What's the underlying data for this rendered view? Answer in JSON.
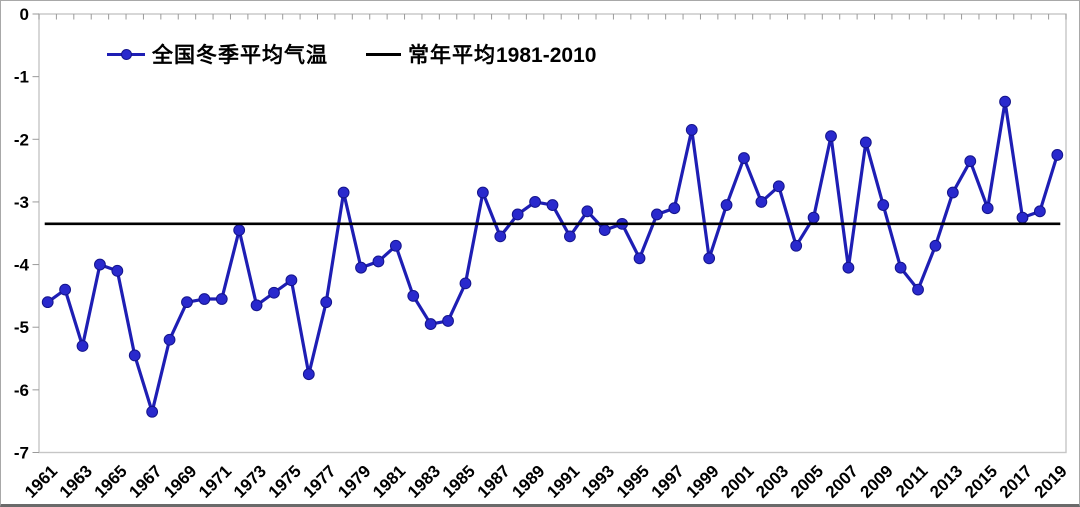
{
  "figure": {
    "background": "#ffffff",
    "frame_border_color": "#a8a8a8",
    "plot_border_color": "#c6c6c6",
    "tick_color": "#9a9a9a",
    "label_color": "#000000"
  },
  "legend": {
    "series1_label": "全国冬季平均气温",
    "series2_prefix": "常年平均",
    "series2_range": "1981-2010",
    "series1_line_color": "#1e1eb4",
    "series1_marker_color": "#2929cd",
    "series2_color": "#000000"
  },
  "chart_data": {
    "type": "line",
    "title": "",
    "xlabel": "",
    "ylabel": "",
    "grid": false,
    "legend_position": "top-inside",
    "ylim": [
      -7,
      0
    ],
    "yticks": [
      0,
      -1,
      -2,
      -3,
      -4,
      -5,
      -6,
      -7
    ],
    "x": [
      1961,
      1962,
      1963,
      1964,
      1965,
      1966,
      1967,
      1968,
      1969,
      1970,
      1971,
      1972,
      1973,
      1974,
      1975,
      1976,
      1977,
      1978,
      1979,
      1980,
      1981,
      1982,
      1983,
      1984,
      1985,
      1986,
      1987,
      1988,
      1989,
      1990,
      1991,
      1992,
      1993,
      1994,
      1995,
      1996,
      1997,
      1998,
      1999,
      2000,
      2001,
      2002,
      2003,
      2004,
      2005,
      2006,
      2007,
      2008,
      2009,
      2010,
      2011,
      2012,
      2013,
      2014,
      2015,
      2016,
      2017,
      2018,
      2019
    ],
    "xtick_labels": [
      "1961",
      "1963",
      "1965",
      "1967",
      "1969",
      "1971",
      "1973",
      "1975",
      "1977",
      "1979",
      "1981",
      "1983",
      "1985",
      "1987",
      "1989",
      "1991",
      "1993",
      "1995",
      "1997",
      "1999",
      "2001",
      "2003",
      "2005",
      "2007",
      "2009",
      "2011",
      "2013",
      "2015",
      "2017",
      "2019"
    ],
    "series": [
      {
        "name": "全国冬季平均气温",
        "type": "line",
        "color": "#1e1eb4",
        "marker": "circle",
        "marker_color": "#2929cd",
        "values": [
          -4.6,
          -4.4,
          -5.3,
          -4.0,
          -4.1,
          -5.45,
          -6.35,
          -5.2,
          -4.6,
          -4.55,
          -4.55,
          -3.45,
          -4.65,
          -4.45,
          -4.25,
          -5.75,
          -4.6,
          -2.85,
          -4.05,
          -3.95,
          -3.7,
          -4.5,
          -4.95,
          -4.9,
          -4.3,
          -2.85,
          -3.55,
          -3.2,
          -3.0,
          -3.05,
          -3.55,
          -3.15,
          -3.45,
          -3.35,
          -3.9,
          -3.2,
          -3.1,
          -1.85,
          -3.9,
          -3.05,
          -2.3,
          -3.0,
          -2.75,
          -3.7,
          -3.25,
          -1.95,
          -4.05,
          -2.05,
          -3.05,
          -4.05,
          -4.4,
          -3.7,
          -2.85,
          -2.35,
          -3.1,
          -1.4,
          -3.25,
          -3.15,
          -2.25
        ]
      },
      {
        "name": "常年平均1981-2010",
        "type": "hline",
        "color": "#000000",
        "value": -3.35
      }
    ]
  }
}
